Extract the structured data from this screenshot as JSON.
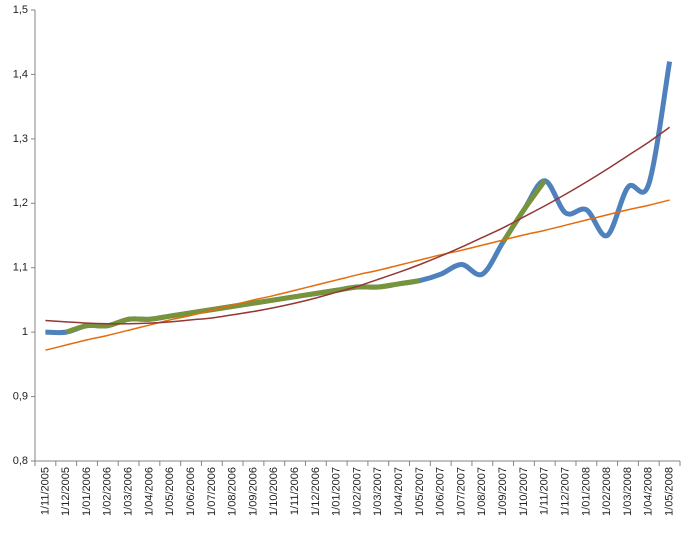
{
  "chart_data": {
    "type": "line",
    "categories": [
      "1/11/2005",
      "1/12/2005",
      "1/01/2006",
      "1/02/2006",
      "1/03/2006",
      "1/04/2006",
      "1/05/2006",
      "1/06/2006",
      "1/07/2006",
      "1/08/2006",
      "1/09/2006",
      "1/10/2006",
      "1/11/2006",
      "1/12/2006",
      "1/01/2007",
      "1/02/2007",
      "1/03/2007",
      "1/04/2007",
      "1/05/2007",
      "1/06/2007",
      "1/07/2007",
      "1/08/2007",
      "1/09/2007",
      "1/10/2007",
      "1/11/2007",
      "1/12/2007",
      "1/01/2008",
      "1/02/2008",
      "1/03/2008",
      "1/04/2008",
      "1/05/2008"
    ],
    "series": [
      {
        "color": "#4f81bd",
        "width": 5,
        "values": [
          1.0,
          1.0,
          1.01,
          1.01,
          1.02,
          1.02,
          1.025,
          1.03,
          1.035,
          1.04,
          1.045,
          1.05,
          1.055,
          1.06,
          1.065,
          1.07,
          1.07,
          1.075,
          1.08,
          1.09,
          1.105,
          1.09,
          1.14,
          1.19,
          1.235,
          1.185,
          1.19,
          1.15,
          1.225,
          1.23,
          1.42
        ]
      },
      {
        "color": "#77933c",
        "width": 5,
        "values": [
          null,
          1.0,
          1.01,
          1.01,
          1.02,
          1.02,
          1.025,
          1.03,
          1.035,
          1.04,
          1.045,
          1.05,
          1.055,
          1.06,
          1.065,
          1.07,
          1.07,
          1.075,
          1.08,
          null,
          null,
          null,
          1.14,
          1.19,
          1.235,
          null,
          null,
          null,
          null,
          null,
          null
        ]
      },
      {
        "color": "#e46c0a",
        "width": 1.5,
        "values": [
          0.972,
          0.98,
          0.988,
          0.995,
          1.003,
          1.011,
          1.019,
          1.026,
          1.034,
          1.042,
          1.05,
          1.057,
          1.065,
          1.073,
          1.081,
          1.089,
          1.096,
          1.104,
          1.112,
          1.12,
          1.127,
          1.135,
          1.143,
          1.151,
          1.158,
          1.166,
          1.174,
          1.182,
          1.19,
          1.197,
          1.205
        ]
      },
      {
        "color": "#953735",
        "width": 1.5,
        "values": [
          1.018,
          1.016,
          1.014,
          1.013,
          1.013,
          1.014,
          1.016,
          1.019,
          1.022,
          1.027,
          1.032,
          1.038,
          1.045,
          1.053,
          1.062,
          1.071,
          1.082,
          1.093,
          1.105,
          1.118,
          1.132,
          1.147,
          1.162,
          1.179,
          1.196,
          1.214,
          1.233,
          1.253,
          1.274,
          1.295,
          1.318
        ]
      }
    ],
    "ylim": [
      0.8,
      1.5
    ],
    "yticks": [
      {
        "value": 0.8,
        "label": "0,8"
      },
      {
        "value": 0.9,
        "label": "0,9"
      },
      1,
      {
        "value": 1.1,
        "label": "1,1"
      },
      {
        "value": 1.2,
        "label": "1,2"
      },
      {
        "value": 1.3,
        "label": "1,3"
      },
      {
        "value": 1.4,
        "label": "1,4"
      },
      {
        "value": 1.5,
        "label": "1,5"
      }
    ],
    "grid": false
  }
}
